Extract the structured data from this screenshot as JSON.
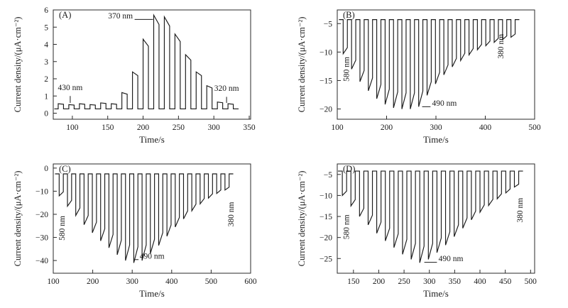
{
  "style": {
    "background": "#ffffff",
    "frame_color": "#2a2a2a",
    "line_color": "#1a1a1a"
  },
  "chart_data": [
    {
      "type": "line",
      "panel_label": "(A)",
      "xlabel": "Time/s",
      "ylabel": "Current density/(μA·cm⁻²)",
      "xlim": [
        73,
        352
      ],
      "ylim": [
        -0.35,
        6
      ],
      "xticks": [
        100,
        150,
        200,
        250,
        300,
        350
      ],
      "yticks": [
        0,
        1,
        2,
        3,
        4,
        5,
        6
      ],
      "baseline": 0.25,
      "pulse_on_duration": 7.5,
      "pulse_decay": 0.1,
      "pulse_times": [
        80,
        95,
        110,
        125,
        140,
        155,
        170,
        185,
        200,
        215,
        230,
        245,
        260,
        275,
        290,
        305,
        320
      ],
      "pulse_amps": [
        0.55,
        0.5,
        0.55,
        0.5,
        0.6,
        0.55,
        1.2,
        2.4,
        4.3,
        5.7,
        5.6,
        4.6,
        3.4,
        2.4,
        1.6,
        0.65,
        0.55
      ],
      "annotations": [
        {
          "text": "430 nm",
          "x": 97,
          "y": 1.35,
          "rotate": false,
          "anchor": "middle",
          "leader": [
            97,
            1.0,
            97,
            0.6
          ]
        },
        {
          "text": "370 nm",
          "x": 168,
          "y": 5.5,
          "rotate": false,
          "anchor": "middle",
          "leader": [
            188,
            5.45,
            214,
            5.45
          ]
        },
        {
          "text": "320 nm",
          "x": 318,
          "y": 1.3,
          "rotate": false,
          "anchor": "middle",
          "leader": [
            318,
            0.95,
            318,
            0.6
          ]
        }
      ]
    },
    {
      "type": "line",
      "panel_label": "(B)",
      "xlabel": "Time/s",
      "ylabel": "Current density/(μA·cm⁻²)",
      "xlim": [
        100,
        500
      ],
      "ylim": [
        -21.8,
        -2.6
      ],
      "xticks": [
        100,
        200,
        300,
        400,
        500
      ],
      "yticks": [
        -5,
        -10,
        -15,
        -20
      ],
      "baseline": -4.3,
      "pulse_on_duration": 8.5,
      "pulse_decay": 0.18,
      "pulse_times": [
        112,
        129,
        146,
        163,
        180,
        197,
        214,
        231,
        248,
        265,
        282,
        299,
        316,
        333,
        350,
        367,
        384,
        401,
        418,
        435,
        452
      ],
      "pulse_amps": [
        -10.3,
        -13,
        -15.2,
        -16.8,
        -18.2,
        -19.2,
        -19.8,
        -20,
        -20,
        -19.6,
        -17.6,
        -15.6,
        -14,
        -12.6,
        -11.5,
        -10.5,
        -9.6,
        -8.9,
        -8.3,
        -7.8,
        -7.4
      ],
      "annotations": [
        {
          "text": "580 nm",
          "x": 124,
          "y": -13,
          "rotate": true,
          "anchor": "middle"
        },
        {
          "text": "490 nm",
          "x": 292,
          "y": -19.4,
          "rotate": false,
          "anchor": "start",
          "leader": [
            272,
            -19.6,
            289,
            -19.6
          ]
        },
        {
          "text": "380 nm",
          "x": 437,
          "y": -9,
          "rotate": true,
          "anchor": "middle"
        }
      ]
    },
    {
      "type": "line",
      "panel_label": "(C)",
      "xlabel": "Time/s",
      "ylabel": "Current density/(μA·cm⁻²)",
      "xlim": [
        100,
        600
      ],
      "ylim": [
        -45.5,
        1.8
      ],
      "xticks": [
        100,
        200,
        300,
        400,
        500,
        600
      ],
      "yticks": [
        0,
        -10,
        -20,
        -30,
        -40
      ],
      "baseline": -2.5,
      "pulse_on_duration": 10.5,
      "pulse_decay": 0.18,
      "pulse_times": [
        115,
        136,
        157,
        178,
        199,
        220,
        241,
        262,
        283,
        304,
        325,
        346,
        367,
        388,
        409,
        430,
        451,
        472,
        493,
        514,
        535
      ],
      "pulse_amps": [
        -12,
        -16.5,
        -20.5,
        -24.5,
        -28,
        -31.5,
        -34.5,
        -37.5,
        -40,
        -41,
        -40,
        -37,
        -33.5,
        -29.5,
        -25.5,
        -22,
        -18.5,
        -15.5,
        -13,
        -11,
        -9.5
      ],
      "annotations": [
        {
          "text": "580 nm",
          "x": 129,
          "y": -26,
          "rotate": true,
          "anchor": "middle"
        },
        {
          "text": "490 nm",
          "x": 319,
          "y": -39.2,
          "rotate": false,
          "anchor": "start",
          "leader": [
            306,
            -39.6,
            316,
            -39.6
          ]
        },
        {
          "text": "380 nm",
          "x": 557,
          "y": -20,
          "rotate": true,
          "anchor": "middle"
        }
      ]
    },
    {
      "type": "line",
      "panel_label": "(D)",
      "xlabel": "Time/s",
      "ylabel": "Current density/(μA·cm⁻²)",
      "xlim": [
        118,
        508
      ],
      "ylim": [
        -28.5,
        -2.5
      ],
      "xticks": [
        150,
        200,
        250,
        300,
        350,
        400,
        450,
        500
      ],
      "yticks": [
        -5,
        -10,
        -15,
        -20,
        -25
      ],
      "baseline": -4.2,
      "pulse_on_duration": 8.5,
      "pulse_decay": 0.18,
      "pulse_times": [
        128,
        145,
        162,
        179,
        196,
        213,
        230,
        247,
        264,
        281,
        298,
        315,
        332,
        349,
        366,
        383,
        400,
        417,
        434,
        451,
        468
      ],
      "pulse_amps": [
        -10,
        -12.5,
        -15,
        -17,
        -19,
        -20.8,
        -22.4,
        -24,
        -25.2,
        -26,
        -25.2,
        -23.6,
        -21.8,
        -19.8,
        -17.8,
        -15.8,
        -14,
        -12.4,
        -10.8,
        -9.4,
        -8
      ],
      "annotations": [
        {
          "text": "580 nm",
          "x": 141,
          "y": -17.5,
          "rotate": true,
          "anchor": "middle"
        },
        {
          "text": "490 nm",
          "x": 318,
          "y": -25.6,
          "rotate": false,
          "anchor": "start",
          "leader": [
            290,
            -25.9,
            315,
            -25.9
          ]
        },
        {
          "text": "380 nm",
          "x": 484,
          "y": -13.5,
          "rotate": true,
          "anchor": "middle"
        }
      ]
    }
  ]
}
